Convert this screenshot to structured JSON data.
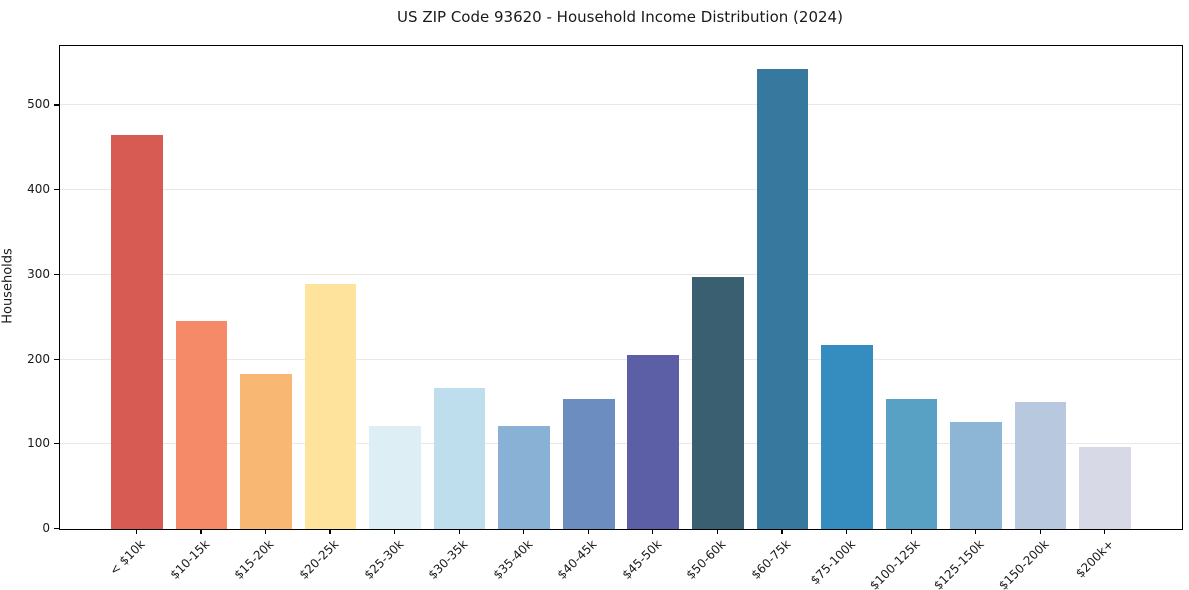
{
  "chart_data": {
    "type": "bar",
    "title": "US ZIP Code 93620 - Household Income Distribution (2024)",
    "xlabel": "",
    "ylabel": "Households",
    "categories": [
      "< $10k",
      "$10-15k",
      "$15-20k",
      "$20-25k",
      "$25-30k",
      "$30-35k",
      "$35-40k",
      "$40-45k",
      "$45-50k",
      "$50-60k",
      "$60-75k",
      "$75-100k",
      "$100-125k",
      "$125-150k",
      "$150-200k",
      "$200k+"
    ],
    "values": [
      465,
      245,
      183,
      289,
      121,
      166,
      121,
      153,
      205,
      297,
      543,
      217,
      153,
      126,
      150,
      97
    ],
    "bar_colors": [
      "#d75a53",
      "#f48a68",
      "#f8b772",
      "#fde39c",
      "#deeef5",
      "#bedeee",
      "#89b1d6",
      "#6b8dbf",
      "#5c5ea6",
      "#3a5f71",
      "#37789e",
      "#348cbf",
      "#58a0c4",
      "#8db5d5",
      "#b8c9df",
      "#d7d9e7"
    ],
    "yticks": [
      0,
      100,
      200,
      300,
      400,
      500
    ],
    "ylim": [
      0,
      570
    ],
    "grid": "horizontal-only",
    "legend": "none",
    "plot_background": "#ffffff",
    "spine_color": "#000000",
    "gridline_color": "#e8e8e8"
  }
}
